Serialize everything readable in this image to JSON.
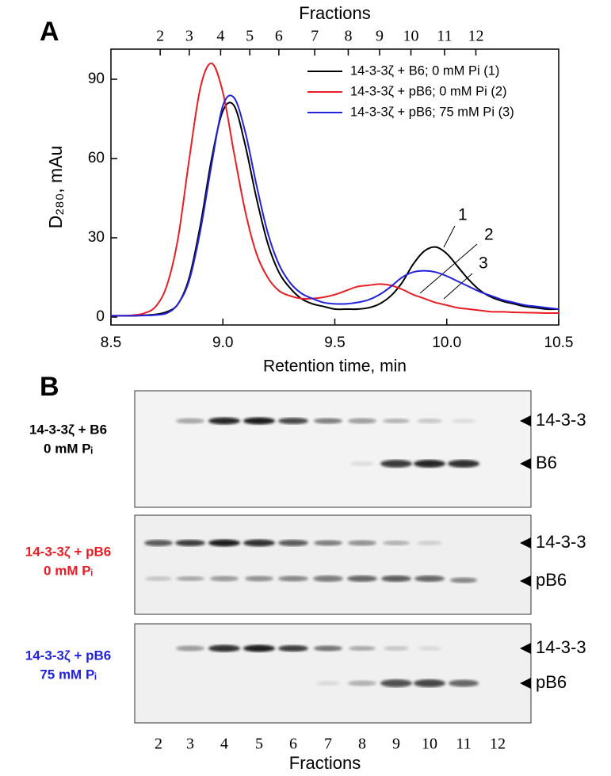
{
  "chart_data": {
    "type": "line",
    "panel_label": "A",
    "xlabel": "Retention time, min",
    "ylabel": "D₂₈₀, mAu",
    "x2label": "Fractions",
    "x": [
      8.5,
      8.55,
      8.6,
      8.65,
      8.7,
      8.75,
      8.8,
      8.85,
      8.9,
      8.95,
      9,
      9.05,
      9.1,
      9.15,
      9.2,
      9.25,
      9.3,
      9.35,
      9.4,
      9.45,
      9.5,
      9.55,
      9.6,
      9.65,
      9.7,
      9.75,
      9.8,
      9.85,
      9.9,
      9.95,
      10,
      10.05,
      10.1,
      10.15,
      10.2,
      10.25,
      10.3,
      10.35,
      10.4,
      10.45,
      10.5
    ],
    "series": [
      {
        "name": "14-3-3ζ + B6; 0 mM Pi (1)",
        "color": "#000000",
        "values": [
          0.5,
          0.5,
          0.5,
          0.7,
          1,
          2,
          5,
          15,
          35,
          60,
          78,
          80,
          65,
          45,
          28,
          17,
          11,
          7,
          5,
          4,
          3,
          3,
          3,
          3.5,
          5,
          8,
          13,
          20,
          25,
          26.5,
          24,
          19,
          14,
          10,
          7.5,
          6,
          5,
          4,
          3.5,
          3,
          3
        ]
      },
      {
        "name": "14-3-3ζ + pB6; 0 mM Pi (2)",
        "color": "#ea1c24",
        "values": [
          0.5,
          0.5,
          0.7,
          1.5,
          4,
          12,
          30,
          60,
          87,
          96,
          85,
          62,
          40,
          24,
          15,
          10,
          8,
          7,
          7,
          7.5,
          8.5,
          10,
          11.5,
          12,
          12.5,
          12,
          10.5,
          8.5,
          7,
          5.5,
          4.5,
          3.5,
          3,
          2.5,
          2,
          2,
          1.8,
          1.7,
          1.6,
          1.5,
          1.5
        ]
      },
      {
        "name": "14-3-3ζ + pB6; 75 mM Pi (3)",
        "color": "#2222dd",
        "values": [
          0.5,
          0.5,
          0.5,
          0.6,
          0.8,
          1.5,
          5,
          14,
          33,
          58,
          80,
          83,
          70,
          50,
          32,
          20,
          13,
          9,
          7,
          5.5,
          5,
          5,
          5.5,
          6.5,
          8.5,
          11.5,
          15,
          17,
          17.5,
          17,
          15.5,
          13.5,
          11.5,
          9.5,
          8,
          6.5,
          5.5,
          4.5,
          4,
          3.5,
          3
        ]
      }
    ],
    "xlim": [
      8.5,
      10.5
    ],
    "xticks": [
      8.5,
      {
        "value": 9,
        "label": "9.0"
      },
      9.5,
      {
        "value": 10,
        "label": "10.0"
      },
      10.5
    ],
    "ylim": [
      -3,
      101.4
    ],
    "yticks": [
      0,
      30,
      60,
      90
    ],
    "x2ticks": [
      {
        "value": 8.72,
        "label": "2"
      },
      {
        "value": 8.85,
        "label": "3"
      },
      {
        "value": 8.99,
        "label": "4"
      },
      {
        "value": 9.12,
        "label": "5"
      },
      {
        "value": 9.25,
        "label": "6"
      },
      {
        "value": 9.41,
        "label": "7"
      },
      {
        "value": 9.56,
        "label": "8"
      },
      {
        "value": 9.7,
        "label": "9"
      },
      {
        "value": 9.84,
        "label": "10"
      },
      {
        "value": 9.99,
        "label": "11"
      },
      {
        "value": 10.13,
        "label": "12"
      }
    ],
    "annotations": [
      "1",
      "2",
      "3"
    ],
    "legend": "upper right"
  },
  "panel_b": {
    "label": "B",
    "xlabel": "Fractions",
    "lanes": [
      "2",
      "3",
      "4",
      "5",
      "6",
      "7",
      "8",
      "9",
      "10",
      "11",
      "12"
    ],
    "gels": [
      {
        "sample": [
          "14-3-3ζ + B6",
          "0 mM Pᵢ"
        ],
        "color": "#000000",
        "bands": [
          "14-3-3",
          "B6"
        ]
      },
      {
        "sample": [
          "14-3-3ζ + pB6",
          "0 mM Pᵢ"
        ],
        "color": "#ea1c24",
        "bands": [
          "14-3-3",
          "pB6"
        ]
      },
      {
        "sample": [
          "14-3-3ζ + pB6",
          "75 mM Pᵢ"
        ],
        "color": "#2222dd",
        "bands": [
          "14-3-3",
          "pB6"
        ]
      }
    ]
  }
}
